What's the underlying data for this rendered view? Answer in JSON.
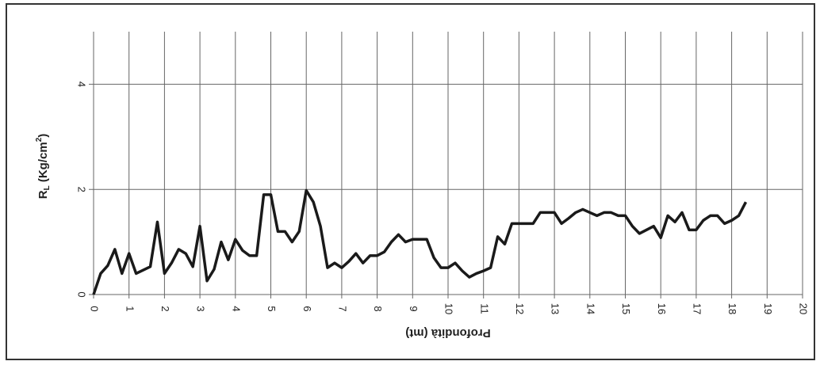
{
  "chart_data": {
    "type": "line",
    "x_label": "Profondità (mt)",
    "y_label": [
      "R",
      "L",
      " (Kg/cm",
      "2",
      ")"
    ],
    "x": [
      0,
      0.2,
      0.4,
      0.6,
      0.8,
      1.0,
      1.2,
      1.6,
      1.8,
      2.0,
      2.2,
      2.4,
      2.6,
      2.8,
      3.0,
      3.2,
      3.4,
      3.6,
      3.8,
      4.0,
      4.2,
      4.4,
      4.6,
      4.8,
      5.0,
      5.2,
      5.4,
      5.6,
      5.8,
      6.0,
      6.2,
      6.4,
      6.6,
      6.8,
      7.0,
      7.2,
      7.4,
      7.6,
      7.8,
      8.0,
      8.2,
      8.4,
      8.6,
      8.8,
      9.0,
      9.2,
      9.4,
      9.6,
      9.8,
      10.0,
      10.2,
      10.4,
      10.6,
      10.8,
      11.0,
      11.2,
      11.4,
      11.6,
      11.8,
      12.0,
      12.2,
      12.4,
      12.6,
      12.8,
      13.0,
      13.2,
      13.4,
      13.6,
      13.8,
      14.0,
      14.2,
      14.4,
      14.6,
      14.8,
      15.0,
      15.2,
      15.4,
      15.6,
      15.8,
      16.0,
      16.2,
      16.4,
      16.6,
      16.8,
      17.0,
      17.2,
      17.4,
      17.6,
      17.8,
      18.0,
      18.2,
      18.4
    ],
    "series": [
      {
        "name": "RL",
        "color": "#1a1a1a",
        "values": [
          0,
          0.4,
          0.55,
          0.86,
          0.4,
          0.78,
          0.4,
          0.53,
          1.38,
          0.4,
          0.6,
          0.86,
          0.78,
          0.53,
          1.3,
          0.26,
          0.48,
          1.0,
          0.66,
          1.05,
          0.84,
          0.74,
          0.74,
          1.9,
          1.9,
          1.2,
          1.2,
          1.0,
          1.2,
          1.98,
          1.76,
          1.3,
          0.51,
          0.6,
          0.51,
          0.63,
          0.78,
          0.6,
          0.74,
          0.74,
          0.81,
          1.0,
          1.14,
          1.0,
          1.05,
          1.05,
          1.05,
          0.7,
          0.51,
          0.51,
          0.6,
          0.45,
          0.33,
          0.4,
          0.45,
          0.51,
          1.1,
          0.96,
          1.35,
          1.35,
          1.35,
          1.35,
          1.56,
          1.56,
          1.56,
          1.35,
          1.45,
          1.56,
          1.62,
          1.56,
          1.5,
          1.56,
          1.56,
          1.5,
          1.5,
          1.3,
          1.16,
          1.23,
          1.3,
          1.08,
          1.5,
          1.38,
          1.56,
          1.23,
          1.23,
          1.41,
          1.5,
          1.5,
          1.35,
          1.41,
          1.5,
          1.76
        ]
      }
    ],
    "xlim": [
      0,
      20
    ],
    "xticks": [
      0,
      1,
      2,
      3,
      4,
      5,
      6,
      7,
      8,
      9,
      10,
      11,
      12,
      13,
      14,
      15,
      16,
      17,
      18,
      19,
      20
    ],
    "ylim": [
      0,
      5
    ],
    "yticks": [
      0,
      2,
      4
    ],
    "grid": true
  }
}
